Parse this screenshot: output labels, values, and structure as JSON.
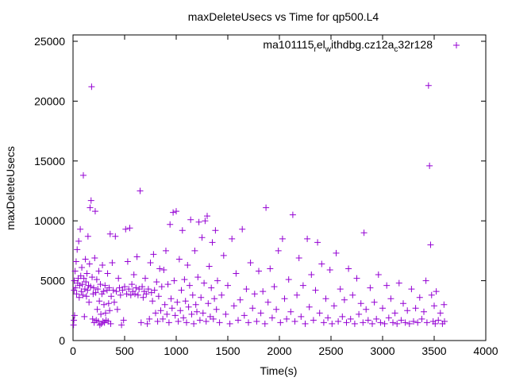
{
  "chart_data": {
    "type": "scatter",
    "title": "maxDeleteUsecs vs Time for qp500.L4",
    "xlabel": "Time(s)",
    "ylabel": "maxDeleteUsecs",
    "xlim": [
      0,
      4000
    ],
    "ylim": [
      0,
      25000
    ],
    "xticks": [
      "0",
      "500",
      "1000",
      "1500",
      "2000",
      "2500",
      "3000",
      "3500",
      "4000"
    ],
    "yticks": [
      "0",
      "5000",
      "10000",
      "15000",
      "20000",
      "25000"
    ],
    "grid": false,
    "legend_placement": "top-right",
    "series": [
      {
        "name": "ma101115_rel_withdbg.cz12a_c32r128",
        "legend_parts": [
          {
            "t": "ma101115",
            "sub": false
          },
          {
            "t": "r",
            "sub": true
          },
          {
            "t": "el",
            "sub": false
          },
          {
            "t": "w",
            "sub": true
          },
          {
            "t": "ithdbg.cz12a",
            "sub": false
          },
          {
            "t": "c",
            "sub": true
          },
          {
            "t": "32r128",
            "sub": false
          }
        ],
        "color": "#9400d3",
        "marker": "plus",
        "points": [
          [
            5,
            1300
          ],
          [
            8,
            1700
          ],
          [
            10,
            4200
          ],
          [
            12,
            5000
          ],
          [
            15,
            2100
          ],
          [
            20,
            5800
          ],
          [
            25,
            4400
          ],
          [
            30,
            6600
          ],
          [
            35,
            3900
          ],
          [
            40,
            7600
          ],
          [
            45,
            4800
          ],
          [
            50,
            5200
          ],
          [
            55,
            8300
          ],
          [
            60,
            3600
          ],
          [
            65,
            4600
          ],
          [
            70,
            9300
          ],
          [
            75,
            5400
          ],
          [
            80,
            4100
          ],
          [
            85,
            6100
          ],
          [
            90,
            4700
          ],
          [
            95,
            3800
          ],
          [
            100,
            13800
          ],
          [
            105,
            5200
          ],
          [
            110,
            2000
          ],
          [
            115,
            4300
          ],
          [
            120,
            6800
          ],
          [
            125,
            4900
          ],
          [
            130,
            3700
          ],
          [
            135,
            5600
          ],
          [
            140,
            4200
          ],
          [
            145,
            8700
          ],
          [
            150,
            4600
          ],
          [
            155,
            3200
          ],
          [
            160,
            6400
          ],
          [
            165,
            11100
          ],
          [
            170,
            4500
          ],
          [
            175,
            11700
          ],
          [
            180,
            21200
          ],
          [
            185,
            5300
          ],
          [
            190,
            1800
          ],
          [
            195,
            3900
          ],
          [
            200,
            4400
          ],
          [
            205,
            1500
          ],
          [
            210,
            6900
          ],
          [
            215,
            10800
          ],
          [
            220,
            4000
          ],
          [
            225,
            1700
          ],
          [
            230,
            5100
          ],
          [
            235,
            2600
          ],
          [
            240,
            4300
          ],
          [
            245,
            1600
          ],
          [
            250,
            5800
          ],
          [
            255,
            3300
          ],
          [
            260,
            1300
          ],
          [
            265,
            4700
          ],
          [
            270,
            2200
          ],
          [
            275,
            1400
          ],
          [
            280,
            3900
          ],
          [
            285,
            6300
          ],
          [
            290,
            1600
          ],
          [
            295,
            4100
          ],
          [
            300,
            3000
          ],
          [
            305,
            1500
          ],
          [
            310,
            4600
          ],
          [
            315,
            2300
          ],
          [
            320,
            1700
          ],
          [
            330,
            4200
          ],
          [
            335,
            5600
          ],
          [
            340,
            1600
          ],
          [
            345,
            3100
          ],
          [
            350,
            4400
          ],
          [
            355,
            2500
          ],
          [
            360,
            8900
          ],
          [
            365,
            1400
          ],
          [
            370,
            3700
          ],
          [
            380,
            6500
          ],
          [
            390,
            4200
          ],
          [
            400,
            3200
          ],
          [
            410,
            8700
          ],
          [
            420,
            4100
          ],
          [
            430,
            2600
          ],
          [
            440,
            5200
          ],
          [
            450,
            4400
          ],
          [
            460,
            3800
          ],
          [
            470,
            1300
          ],
          [
            480,
            4200
          ],
          [
            490,
            1700
          ],
          [
            500,
            4500
          ],
          [
            510,
            9300
          ],
          [
            520,
            3900
          ],
          [
            530,
            6600
          ],
          [
            540,
            4300
          ],
          [
            550,
            9400
          ],
          [
            560,
            3800
          ],
          [
            570,
            4700
          ],
          [
            580,
            4100
          ],
          [
            590,
            5500
          ],
          [
            600,
            3900
          ],
          [
            610,
            4400
          ],
          [
            620,
            7000
          ],
          [
            630,
            3800
          ],
          [
            640,
            4300
          ],
          [
            650,
            12500
          ],
          [
            660,
            1500
          ],
          [
            670,
            4500
          ],
          [
            680,
            3600
          ],
          [
            690,
            4100
          ],
          [
            700,
            5200
          ],
          [
            710,
            3900
          ],
          [
            720,
            1400
          ],
          [
            730,
            4300
          ],
          [
            740,
            1800
          ],
          [
            750,
            6500
          ],
          [
            760,
            4000
          ],
          [
            770,
            3300
          ],
          [
            780,
            7200
          ],
          [
            790,
            4200
          ],
          [
            800,
            2300
          ],
          [
            810,
            4900
          ],
          [
            820,
            1600
          ],
          [
            830,
            3700
          ],
          [
            840,
            6000
          ],
          [
            850,
            2500
          ],
          [
            860,
            4500
          ],
          [
            870,
            1800
          ],
          [
            880,
            5900
          ],
          [
            890,
            3000
          ],
          [
            900,
            7500
          ],
          [
            910,
            2200
          ],
          [
            920,
            4700
          ],
          [
            930,
            1500
          ],
          [
            940,
            9700
          ],
          [
            950,
            3500
          ],
          [
            960,
            2700
          ],
          [
            970,
            10700
          ],
          [
            980,
            5000
          ],
          [
            990,
            2100
          ],
          [
            1000,
            10800
          ],
          [
            1010,
            3200
          ],
          [
            1020,
            1600
          ],
          [
            1030,
            6800
          ],
          [
            1040,
            2500
          ],
          [
            1050,
            4200
          ],
          [
            1060,
            9200
          ],
          [
            1070,
            1900
          ],
          [
            1080,
            5100
          ],
          [
            1090,
            3300
          ],
          [
            1100,
            1500
          ],
          [
            1110,
            6300
          ],
          [
            1120,
            2800
          ],
          [
            1130,
            4600
          ],
          [
            1140,
            10100
          ],
          [
            1150,
            2200
          ],
          [
            1160,
            3800
          ],
          [
            1170,
            1400
          ],
          [
            1180,
            7500
          ],
          [
            1190,
            3000
          ],
          [
            1200,
            2400
          ],
          [
            1210,
            5300
          ],
          [
            1220,
            9900
          ],
          [
            1230,
            1700
          ],
          [
            1240,
            3600
          ],
          [
            1250,
            8600
          ],
          [
            1260,
            2300
          ],
          [
            1270,
            4800
          ],
          [
            1280,
            10000
          ],
          [
            1290,
            1600
          ],
          [
            1300,
            10400
          ],
          [
            1310,
            3100
          ],
          [
            1320,
            6200
          ],
          [
            1330,
            2000
          ],
          [
            1340,
            4400
          ],
          [
            1350,
            8200
          ],
          [
            1360,
            1800
          ],
          [
            1370,
            3500
          ],
          [
            1380,
            9200
          ],
          [
            1390,
            2600
          ],
          [
            1400,
            5000
          ],
          [
            1420,
            1500
          ],
          [
            1440,
            3800
          ],
          [
            1460,
            7100
          ],
          [
            1480,
            2200
          ],
          [
            1500,
            4600
          ],
          [
            1520,
            1400
          ],
          [
            1540,
            8500
          ],
          [
            1560,
            2900
          ],
          [
            1580,
            5600
          ],
          [
            1600,
            1700
          ],
          [
            1620,
            3400
          ],
          [
            1640,
            9300
          ],
          [
            1660,
            2100
          ],
          [
            1680,
            4300
          ],
          [
            1700,
            1500
          ],
          [
            1720,
            6500
          ],
          [
            1740,
            2700
          ],
          [
            1760,
            3900
          ],
          [
            1780,
            1600
          ],
          [
            1800,
            5800
          ],
          [
            1820,
            2300
          ],
          [
            1840,
            4100
          ],
          [
            1860,
            1400
          ],
          [
            1870,
            11100
          ],
          [
            1890,
            3200
          ],
          [
            1910,
            6000
          ],
          [
            1930,
            1900
          ],
          [
            1950,
            4500
          ],
          [
            1970,
            2600
          ],
          [
            1990,
            7500
          ],
          [
            2010,
            1500
          ],
          [
            2030,
            8500
          ],
          [
            2050,
            3500
          ],
          [
            2070,
            1800
          ],
          [
            2090,
            5100
          ],
          [
            2110,
            2400
          ],
          [
            2130,
            10500
          ],
          [
            2150,
            1600
          ],
          [
            2170,
            3800
          ],
          [
            2190,
            6900
          ],
          [
            2210,
            2000
          ],
          [
            2230,
            4600
          ],
          [
            2250,
            1400
          ],
          [
            2270,
            8500
          ],
          [
            2290,
            2800
          ],
          [
            2310,
            5500
          ],
          [
            2330,
            1700
          ],
          [
            2350,
            4200
          ],
          [
            2370,
            8200
          ],
          [
            2390,
            2300
          ],
          [
            2410,
            6400
          ],
          [
            2430,
            1500
          ],
          [
            2450,
            3500
          ],
          [
            2470,
            1900
          ],
          [
            2490,
            5900
          ],
          [
            2510,
            1400
          ],
          [
            2530,
            2900
          ],
          [
            2550,
            7300
          ],
          [
            2570,
            1600
          ],
          [
            2590,
            4300
          ],
          [
            2610,
            2000
          ],
          [
            2630,
            3400
          ],
          [
            2650,
            1500
          ],
          [
            2670,
            6000
          ],
          [
            2690,
            1800
          ],
          [
            2710,
            3800
          ],
          [
            2730,
            1400
          ],
          [
            2750,
            5200
          ],
          [
            2770,
            2200
          ],
          [
            2790,
            3100
          ],
          [
            2810,
            1500
          ],
          [
            2820,
            9000
          ],
          [
            2840,
            2600
          ],
          [
            2860,
            1700
          ],
          [
            2880,
            4400
          ],
          [
            2900,
            1400
          ],
          [
            2920,
            3200
          ],
          [
            2940,
            1800
          ],
          [
            2960,
            5500
          ],
          [
            2980,
            1500
          ],
          [
            3000,
            2700
          ],
          [
            3020,
            1400
          ],
          [
            3040,
            4600
          ],
          [
            3060,
            1900
          ],
          [
            3080,
            3500
          ],
          [
            3100,
            1500
          ],
          [
            3120,
            2300
          ],
          [
            3140,
            1400
          ],
          [
            3160,
            4800
          ],
          [
            3180,
            1700
          ],
          [
            3200,
            3100
          ],
          [
            3220,
            1500
          ],
          [
            3240,
            2500
          ],
          [
            3260,
            1400
          ],
          [
            3280,
            4300
          ],
          [
            3300,
            1600
          ],
          [
            3320,
            2700
          ],
          [
            3340,
            1500
          ],
          [
            3360,
            3600
          ],
          [
            3380,
            1800
          ],
          [
            3400,
            2400
          ],
          [
            3420,
            5000
          ],
          [
            3430,
            1500
          ],
          [
            3445,
            21300
          ],
          [
            3455,
            14600
          ],
          [
            3465,
            8000
          ],
          [
            3475,
            3800
          ],
          [
            3490,
            1600
          ],
          [
            3500,
            2900
          ],
          [
            3510,
            1400
          ],
          [
            3520,
            4100
          ],
          [
            3540,
            1700
          ],
          [
            3560,
            2300
          ],
          [
            3580,
            1400
          ],
          [
            3595,
            3000
          ],
          [
            3600,
            1600
          ]
        ]
      }
    ]
  }
}
